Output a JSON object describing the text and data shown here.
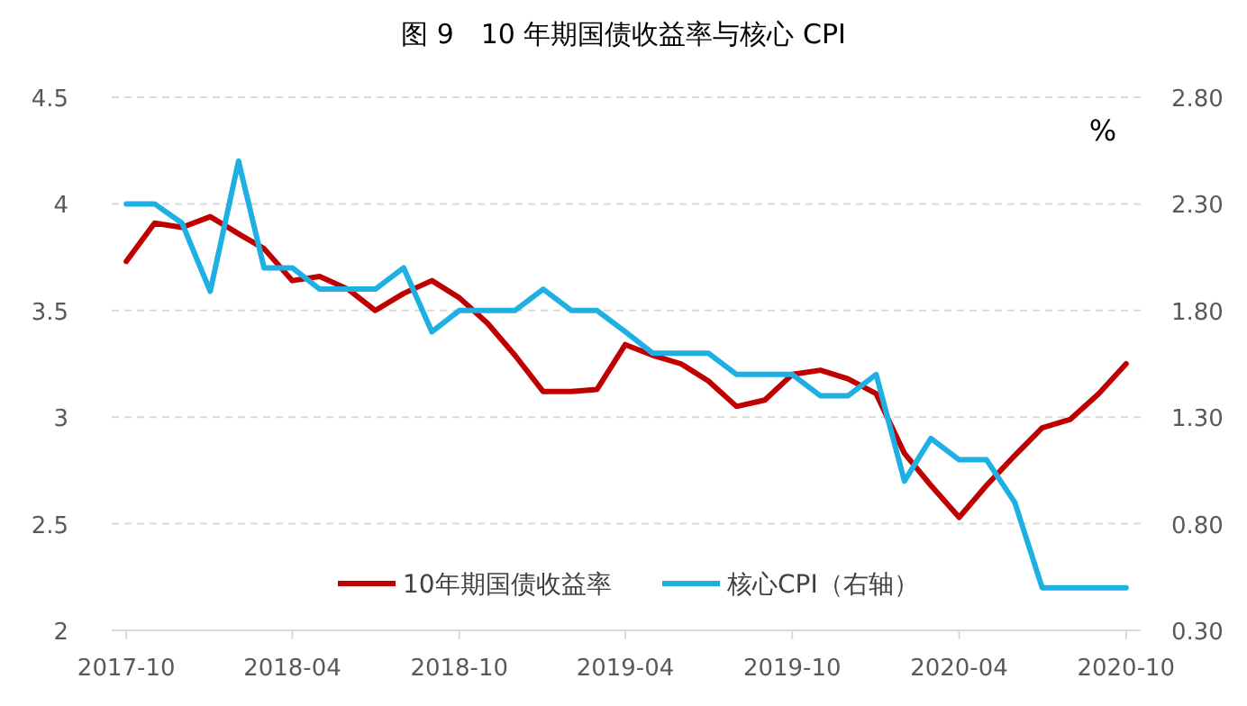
{
  "chart_data": {
    "type": "line",
    "title": "图 9　10 年期国债收益率与核心 CPI",
    "x": [
      "2017-10",
      "2017-11",
      "2017-12",
      "2018-01",
      "2018-02",
      "2018-03",
      "2018-04",
      "2018-05",
      "2018-06",
      "2018-07",
      "2018-08",
      "2018-09",
      "2018-10",
      "2018-11",
      "2018-12",
      "2019-01",
      "2019-02",
      "2019-03",
      "2019-04",
      "2019-05",
      "2019-06",
      "2019-07",
      "2019-08",
      "2019-09",
      "2019-10",
      "2019-11",
      "2019-12",
      "2020-01",
      "2020-02",
      "2020-03",
      "2020-04",
      "2020-05",
      "2020-06",
      "2020-07",
      "2020-08",
      "2020-09",
      "2020-10"
    ],
    "series": [
      {
        "name": "10年期国债收益率",
        "color": "#c00000",
        "values": [
          3.73,
          3.91,
          3.89,
          3.94,
          3.86,
          3.79,
          3.64,
          3.66,
          3.6,
          3.5,
          3.58,
          3.64,
          3.56,
          3.44,
          3.29,
          3.12,
          3.12,
          3.13,
          3.34,
          3.29,
          3.25,
          3.17,
          3.05,
          3.08,
          3.2,
          3.22,
          3.18,
          3.11,
          2.83,
          2.68,
          2.53,
          2.68,
          2.82,
          2.95,
          2.99,
          3.11,
          3.25
        ]
      },
      {
        "name": "核心CPI（右轴）",
        "color": "#1fb0e3",
        "axis": "y2",
        "values": [
          2.3,
          2.3,
          2.21,
          1.89,
          2.5,
          2.0,
          2.0,
          1.9,
          1.9,
          1.9,
          2.0,
          1.7,
          1.8,
          1.8,
          1.8,
          1.9,
          1.8,
          1.8,
          1.7,
          1.6,
          1.6,
          1.6,
          1.5,
          1.5,
          1.5,
          1.4,
          1.4,
          1.5,
          1.0,
          1.2,
          1.1,
          1.1,
          0.9,
          0.5,
          0.5,
          0.5,
          0.5
        ]
      }
    ],
    "xlim": [
      "2017-09-15",
      "2020-10-17"
    ],
    "xticks": [
      "2017-10",
      "2018-04",
      "2018-10",
      "2019-04",
      "2019-10",
      "2020-04",
      "2020-10"
    ],
    "ylim": [
      2,
      4.5
    ],
    "yticks": [
      2,
      2.5,
      3,
      3.5,
      4,
      4.5
    ],
    "y2lim": [
      0.3,
      2.8
    ],
    "y2ticks": [
      {
        "value": 0.3,
        "label": "0.30"
      },
      {
        "value": 0.8,
        "label": "0.80"
      },
      {
        "value": 1.3,
        "label": "1.30"
      },
      {
        "value": 1.8,
        "label": "1.80"
      },
      {
        "value": 2.3,
        "label": "2.30"
      },
      {
        "value": 2.8,
        "label": "2.80"
      }
    ],
    "annotations": [
      "%"
    ],
    "grid": "y",
    "legend": "bottom"
  }
}
